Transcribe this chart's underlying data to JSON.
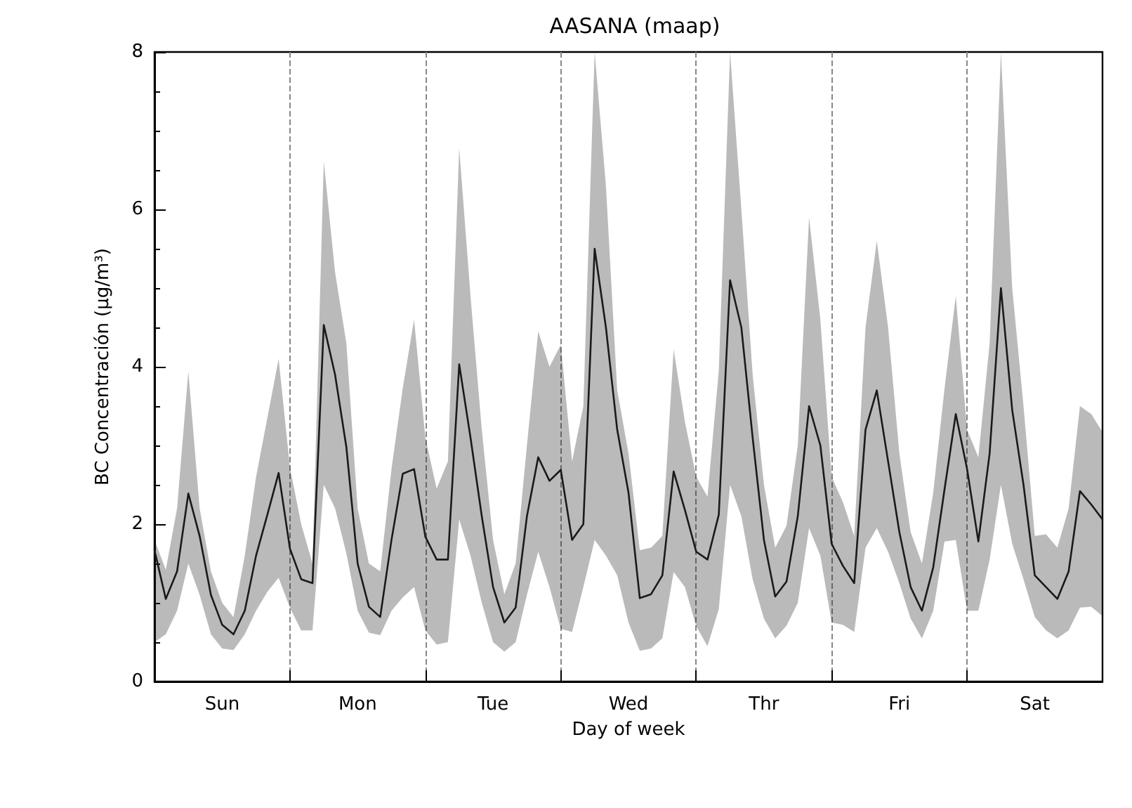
{
  "chart_data": {
    "type": "line",
    "title": "AASANA (maap)",
    "xlabel": "Day of week",
    "ylabel": "BC Concentración (μg/m³)",
    "categories": [
      null,
      null,
      null,
      null,
      null,
      null,
      "Sun",
      null,
      null,
      null,
      null,
      null,
      null,
      null,
      null,
      null,
      null,
      null,
      "Mon",
      null,
      null,
      null,
      null,
      null,
      null,
      null,
      null,
      null,
      null,
      null,
      "Tue",
      null,
      null,
      null,
      null,
      null,
      null,
      null,
      null,
      null,
      null,
      null,
      "Wed",
      null,
      null,
      null,
      null,
      null,
      null,
      null,
      null,
      null,
      null,
      null,
      "Thr",
      null,
      null,
      null,
      null,
      null,
      null,
      null,
      null,
      null,
      null,
      null,
      "Fri",
      null,
      null,
      null,
      null,
      null,
      null,
      null,
      null,
      null,
      null,
      null,
      "Sat",
      null,
      null,
      null,
      null,
      null,
      null
    ],
    "ylim": [
      0,
      8
    ],
    "yticks": [
      0,
      2,
      4,
      6,
      8
    ],
    "grid": "x",
    "marker": "none",
    "line_style": "solid",
    "series": [
      {
        "color": "#1a1a1a",
        "values": [
          1.67,
          1.05,
          1.4,
          2.39,
          1.85,
          1.1,
          0.72,
          0.6,
          0.9,
          1.6,
          2.12,
          2.65,
          1.69,
          1.3,
          1.25,
          4.53,
          3.9,
          2.98,
          1.5,
          0.95,
          0.82,
          1.8,
          2.64,
          2.7,
          1.84,
          1.55,
          1.55,
          4.03,
          3.1,
          2.1,
          1.2,
          0.75,
          0.94,
          2.1,
          2.85,
          2.55,
          2.69,
          1.8,
          2.0,
          5.5,
          4.5,
          3.2,
          2.4,
          1.06,
          1.11,
          1.35,
          2.67,
          2.18,
          1.65,
          1.55,
          2.12,
          5.1,
          4.5,
          3.1,
          1.8,
          1.08,
          1.27,
          2.1,
          3.5,
          3.0,
          1.75,
          1.47,
          1.25,
          3.2,
          3.7,
          2.8,
          1.9,
          1.2,
          0.9,
          1.45,
          2.44,
          3.4,
          2.7,
          1.78,
          2.9,
          5.0,
          3.45,
          2.5,
          1.35,
          1.2,
          1.05,
          1.4,
          2.42,
          2.25,
          2.06
        ],
        "lower": [
          0.5,
          0.6,
          0.9,
          1.5,
          1.1,
          0.6,
          0.42,
          0.4,
          0.6,
          0.9,
          1.14,
          1.32,
          0.94,
          0.65,
          0.65,
          2.5,
          2.2,
          1.63,
          0.9,
          0.62,
          0.59,
          0.9,
          1.07,
          1.2,
          0.65,
          0.47,
          0.5,
          2.06,
          1.6,
          1.0,
          0.5,
          0.38,
          0.5,
          1.1,
          1.65,
          1.2,
          0.67,
          0.63,
          1.2,
          1.8,
          1.6,
          1.35,
          0.75,
          0.39,
          0.42,
          0.55,
          1.39,
          1.2,
          0.7,
          0.45,
          0.92,
          2.5,
          2.1,
          1.3,
          0.8,
          0.55,
          0.71,
          1.0,
          1.95,
          1.6,
          0.75,
          0.72,
          0.63,
          1.7,
          1.95,
          1.65,
          1.25,
          0.8,
          0.55,
          0.9,
          1.78,
          1.8,
          0.9,
          0.9,
          1.55,
          2.5,
          1.75,
          1.3,
          0.82,
          0.65,
          0.55,
          0.65,
          0.94,
          0.95,
          0.83
        ],
        "upper": [
          1.8,
          1.42,
          2.2,
          3.94,
          2.2,
          1.4,
          1.0,
          0.82,
          1.6,
          2.6,
          3.35,
          4.1,
          2.72,
          2.0,
          1.5,
          6.61,
          5.2,
          4.3,
          2.2,
          1.5,
          1.4,
          2.7,
          3.73,
          4.6,
          3.1,
          2.45,
          2.8,
          6.78,
          4.9,
          3.2,
          1.8,
          1.11,
          1.5,
          3.0,
          4.45,
          4.0,
          4.28,
          2.8,
          3.5,
          8.0,
          6.3,
          3.7,
          2.9,
          1.67,
          1.7,
          1.85,
          4.22,
          3.3,
          2.6,
          2.35,
          3.95,
          8.0,
          6.0,
          3.9,
          2.5,
          1.7,
          1.98,
          3.0,
          5.9,
          4.6,
          2.6,
          2.28,
          1.85,
          4.5,
          5.6,
          4.5,
          2.9,
          1.9,
          1.5,
          2.4,
          3.72,
          4.9,
          3.2,
          2.85,
          4.3,
          8.0,
          5.0,
          3.5,
          1.85,
          1.87,
          1.7,
          2.2,
          3.5,
          3.4,
          3.17
        ]
      }
    ]
  }
}
